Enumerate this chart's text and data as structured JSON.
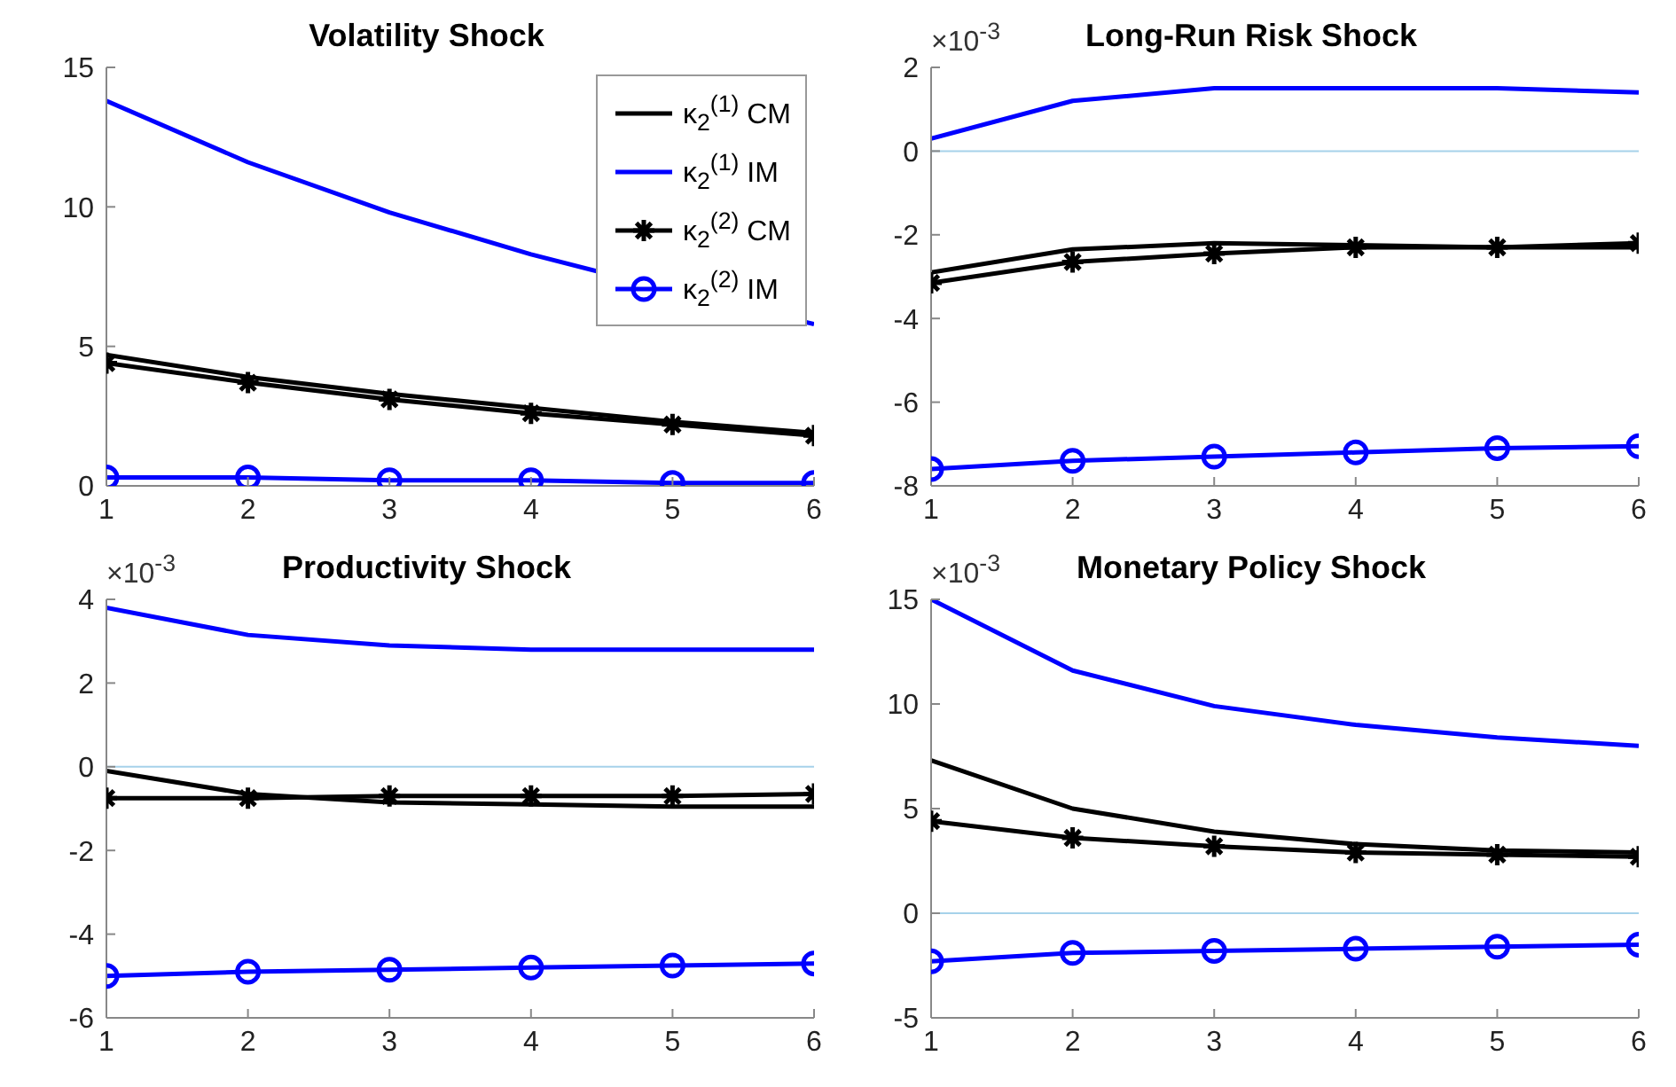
{
  "chart_data": [
    {
      "type": "line",
      "title": "Volatility Shock",
      "x": [
        1,
        2,
        3,
        4,
        5,
        6
      ],
      "xlim": [
        1,
        6
      ],
      "xticks": [
        1,
        2,
        3,
        4,
        5,
        6
      ],
      "ylim": [
        0,
        15
      ],
      "yticks": [
        0,
        5,
        10,
        15
      ],
      "grid": false,
      "legend": "top right",
      "series": [
        {
          "name": "κ$_{2}$$^{(1)}$ CM",
          "color": "#000000",
          "marker": "none",
          "values": [
            4.7,
            3.9,
            3.3,
            2.8,
            2.3,
            1.9
          ]
        },
        {
          "name": "κ$_{2}$$^{(1)}$ IM",
          "color": "#0000ff",
          "marker": "none",
          "values": [
            13.8,
            11.6,
            9.8,
            8.3,
            7.0,
            5.8
          ]
        },
        {
          "name": "κ$_{2}$$^{(2)}$ CM",
          "color": "#000000",
          "marker": "cross",
          "values": [
            4.4,
            3.7,
            3.1,
            2.6,
            2.2,
            1.8
          ]
        },
        {
          "name": "κ$_{2}$$^{(2)}$ IM",
          "color": "#0000ff",
          "marker": "circle",
          "values": [
            0.3,
            0.3,
            0.2,
            0.2,
            0.1,
            0.1
          ]
        }
      ]
    },
    {
      "type": "line",
      "title": "Long-Run Risk Shock",
      "annotations": [
        "×10$^{-3}$"
      ],
      "x": [
        1,
        2,
        3,
        4,
        5,
        6
      ],
      "xlim": [
        1,
        6
      ],
      "xticks": [
        1,
        2,
        3,
        4,
        5,
        6
      ],
      "ylim": [
        -8,
        2
      ],
      "yticks": [
        -8,
        -6,
        -4,
        -2,
        0,
        2
      ],
      "grid": false,
      "ref_lines": [
        {
          "axis": "y",
          "value": 0,
          "color": "#a6d2ea"
        }
      ],
      "series": [
        {
          "color": "#000000",
          "marker": "none",
          "values": [
            -2.9,
            -2.35,
            -2.2,
            -2.25,
            -2.3,
            -2.3
          ]
        },
        {
          "color": "#0000ff",
          "marker": "none",
          "values": [
            0.3,
            1.2,
            1.5,
            1.5,
            1.5,
            1.4
          ]
        },
        {
          "color": "#000000",
          "marker": "cross",
          "values": [
            -3.15,
            -2.65,
            -2.45,
            -2.3,
            -2.3,
            -2.2
          ]
        },
        {
          "color": "#0000ff",
          "marker": "circle",
          "values": [
            -7.6,
            -7.4,
            -7.3,
            -7.2,
            -7.1,
            -7.05
          ]
        }
      ]
    },
    {
      "type": "line",
      "title": "Productivity Shock",
      "annotations": [
        "×10$^{-3}$"
      ],
      "x": [
        1,
        2,
        3,
        4,
        5,
        6
      ],
      "xlim": [
        1,
        6
      ],
      "xticks": [
        1,
        2,
        3,
        4,
        5,
        6
      ],
      "ylim": [
        -6,
        4
      ],
      "yticks": [
        -6,
        -4,
        -2,
        0,
        2,
        4
      ],
      "grid": false,
      "ref_lines": [
        {
          "axis": "y",
          "value": 0,
          "color": "#a6d2ea"
        }
      ],
      "series": [
        {
          "color": "#000000",
          "marker": "none",
          "values": [
            -0.1,
            -0.65,
            -0.85,
            -0.9,
            -0.95,
            -0.95
          ]
        },
        {
          "color": "#0000ff",
          "marker": "none",
          "values": [
            3.8,
            3.15,
            2.9,
            2.8,
            2.8,
            2.8
          ]
        },
        {
          "color": "#000000",
          "marker": "cross",
          "values": [
            -0.75,
            -0.75,
            -0.7,
            -0.7,
            -0.7,
            -0.65
          ]
        },
        {
          "color": "#0000ff",
          "marker": "circle",
          "values": [
            -5.0,
            -4.9,
            -4.85,
            -4.8,
            -4.75,
            -4.7
          ]
        }
      ]
    },
    {
      "type": "line",
      "title": "Monetary Policy Shock",
      "annotations": [
        "×10$^{-3}$"
      ],
      "x": [
        1,
        2,
        3,
        4,
        5,
        6
      ],
      "xlim": [
        1,
        6
      ],
      "xticks": [
        1,
        2,
        3,
        4,
        5,
        6
      ],
      "ylim": [
        -5,
        15
      ],
      "yticks": [
        -5,
        0,
        5,
        10,
        15
      ],
      "grid": false,
      "ref_lines": [
        {
          "axis": "y",
          "value": 0,
          "color": "#a6d2ea"
        }
      ],
      "series": [
        {
          "color": "#000000",
          "marker": "none",
          "values": [
            7.3,
            5.0,
            3.9,
            3.3,
            3.0,
            2.9
          ]
        },
        {
          "color": "#0000ff",
          "marker": "none",
          "values": [
            15.0,
            11.6,
            9.9,
            9.0,
            8.4,
            8.0
          ]
        },
        {
          "color": "#000000",
          "marker": "cross",
          "values": [
            4.4,
            3.6,
            3.2,
            2.9,
            2.8,
            2.7
          ]
        },
        {
          "color": "#0000ff",
          "marker": "circle",
          "values": [
            -2.3,
            -1.9,
            -1.8,
            -1.7,
            -1.6,
            -1.5
          ]
        }
      ]
    }
  ]
}
